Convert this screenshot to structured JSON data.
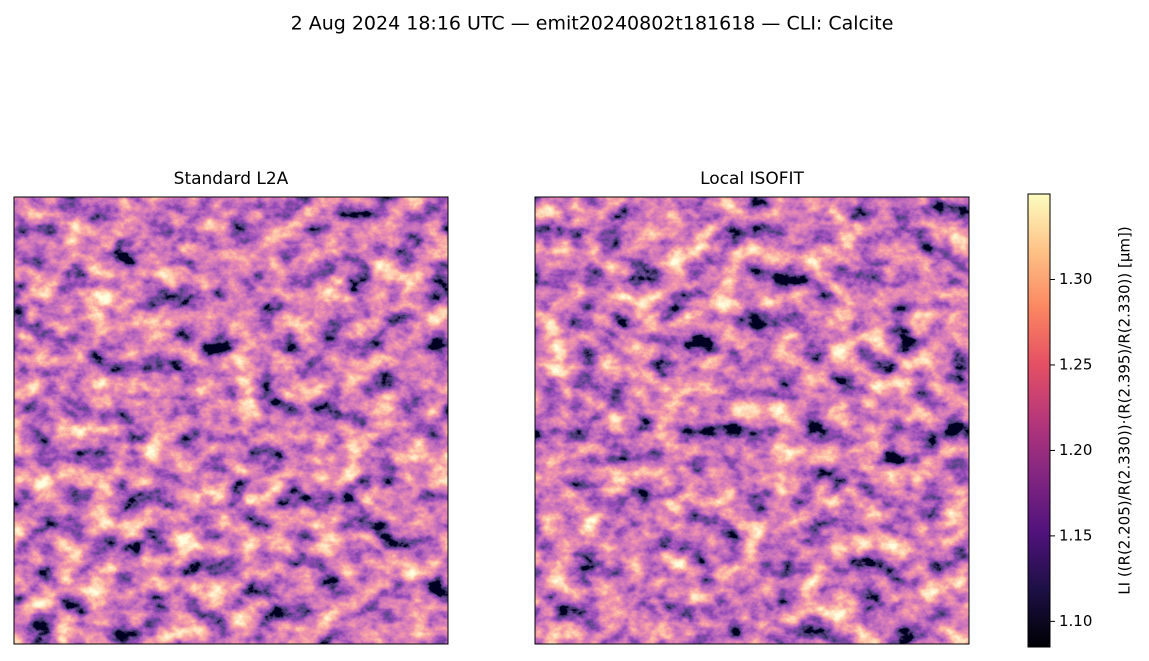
{
  "chart_data": {
    "type": "image",
    "title": "2 Aug 2024 18:16 UTC — emit20240802t181618 — CLI: Calcite",
    "panels": [
      {
        "title": "Standard L2A"
      },
      {
        "title": "Local ISOFIT"
      }
    ],
    "colorbar": {
      "label": "LI  ((R(2.205)/R(2.330))·(R(2.395)/R(2.330))  [µm])",
      "colormap": "magma",
      "clim": [
        1.085,
        1.35
      ],
      "ticks": [
        {
          "value": 1.1,
          "label": "1.10"
        },
        1.15,
        {
          "value": 1.2,
          "label": "1.20"
        },
        1.25,
        {
          "value": 1.3,
          "label": "1.30"
        }
      ]
    }
  }
}
